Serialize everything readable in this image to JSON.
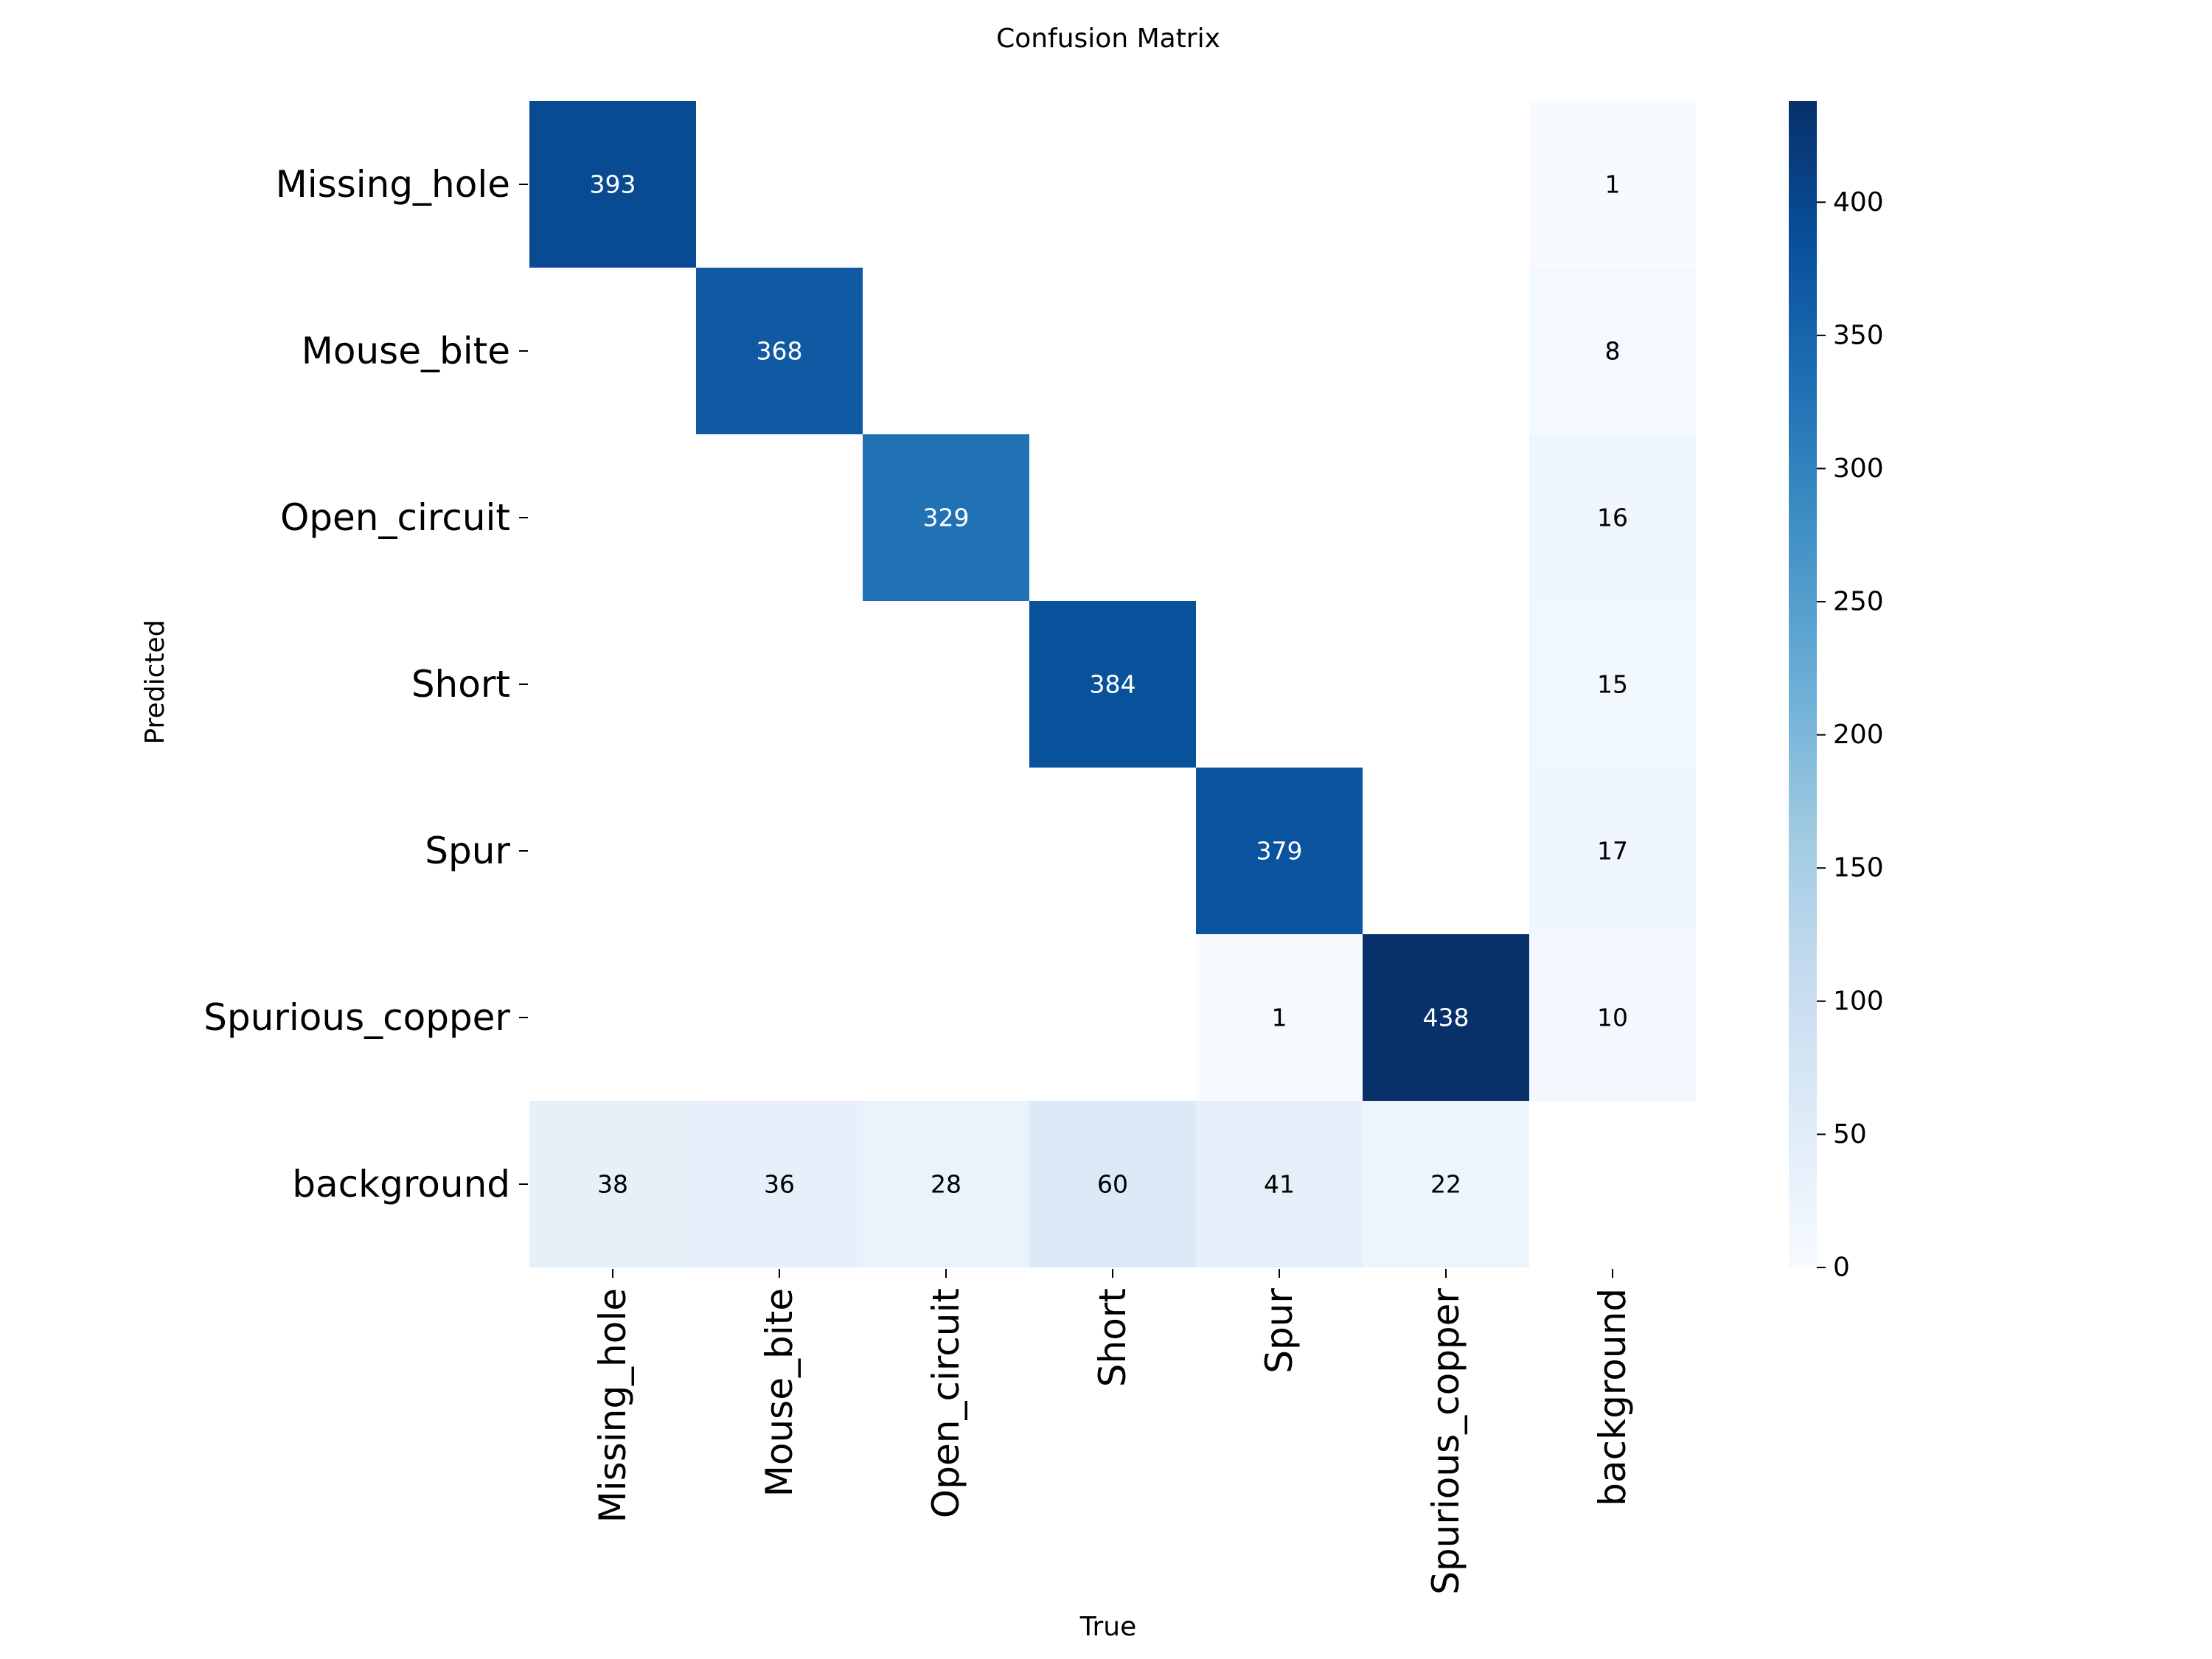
{
  "chart_data": {
    "type": "heatmap",
    "title": "Confusion Matrix",
    "xlabel": "True",
    "ylabel": "Predicted",
    "x_categories": [
      "Missing_hole",
      "Mouse_bite",
      "Open_circuit",
      "Short",
      "Spur",
      "Spurious_copper",
      "background"
    ],
    "y_categories": [
      "Missing_hole",
      "Mouse_bite",
      "Open_circuit",
      "Short",
      "Spur",
      "Spurious_copper",
      "background"
    ],
    "values": [
      [
        393,
        null,
        null,
        null,
        null,
        null,
        1
      ],
      [
        null,
        368,
        null,
        null,
        null,
        null,
        8
      ],
      [
        null,
        null,
        329,
        null,
        null,
        null,
        16
      ],
      [
        null,
        null,
        null,
        384,
        null,
        null,
        15
      ],
      [
        null,
        null,
        null,
        null,
        379,
        null,
        17
      ],
      [
        null,
        null,
        null,
        null,
        1,
        438,
        10
      ],
      [
        38,
        36,
        28,
        60,
        41,
        22,
        null
      ]
    ],
    "colormap": "Blues",
    "colorbar": {
      "range": [
        0,
        438
      ],
      "ticks": [
        0,
        50,
        100,
        150,
        200,
        250,
        300,
        350,
        400
      ]
    }
  }
}
